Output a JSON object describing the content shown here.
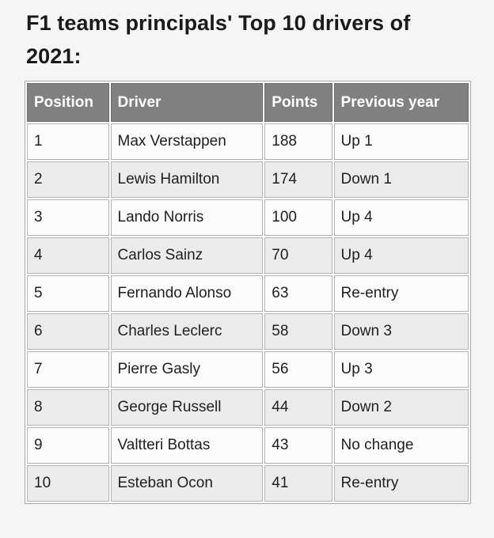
{
  "title": "F1 teams principals' Top 10 drivers of 2021:",
  "table": {
    "headers": {
      "position": "Position",
      "driver": "Driver",
      "points": "Points",
      "previous": "Previous year"
    },
    "rows": [
      {
        "position": "1",
        "driver": "Max Verstappen",
        "points": "188",
        "previous": "Up 1"
      },
      {
        "position": "2",
        "driver": "Lewis Hamilton",
        "points": "174",
        "previous": "Down 1"
      },
      {
        "position": "3",
        "driver": "Lando Norris",
        "points": "100",
        "previous": "Up 4"
      },
      {
        "position": "4",
        "driver": "Carlos Sainz",
        "points": "70",
        "previous": "Up 4"
      },
      {
        "position": "5",
        "driver": "Fernando Alonso",
        "points": "63",
        "previous": "Re-entry"
      },
      {
        "position": "6",
        "driver": "Charles Leclerc",
        "points": "58",
        "previous": "Down 3"
      },
      {
        "position": "7",
        "driver": "Pierre Gasly",
        "points": "56",
        "previous": "Up 3"
      },
      {
        "position": "8",
        "driver": "George Russell",
        "points": "44",
        "previous": "Down 2"
      },
      {
        "position": "9",
        "driver": "Valtteri Bottas",
        "points": "43",
        "previous": "No change"
      },
      {
        "position": "10",
        "driver": "Esteban Ocon",
        "points": "41",
        "previous": "Re-entry"
      }
    ]
  },
  "colors": {
    "header_bg": "#808080",
    "header_text": "#ffffff",
    "row_even_bg": "#ebebeb",
    "row_odd_bg": "#fbfbfb",
    "page_bg": "#f5f5f5"
  }
}
